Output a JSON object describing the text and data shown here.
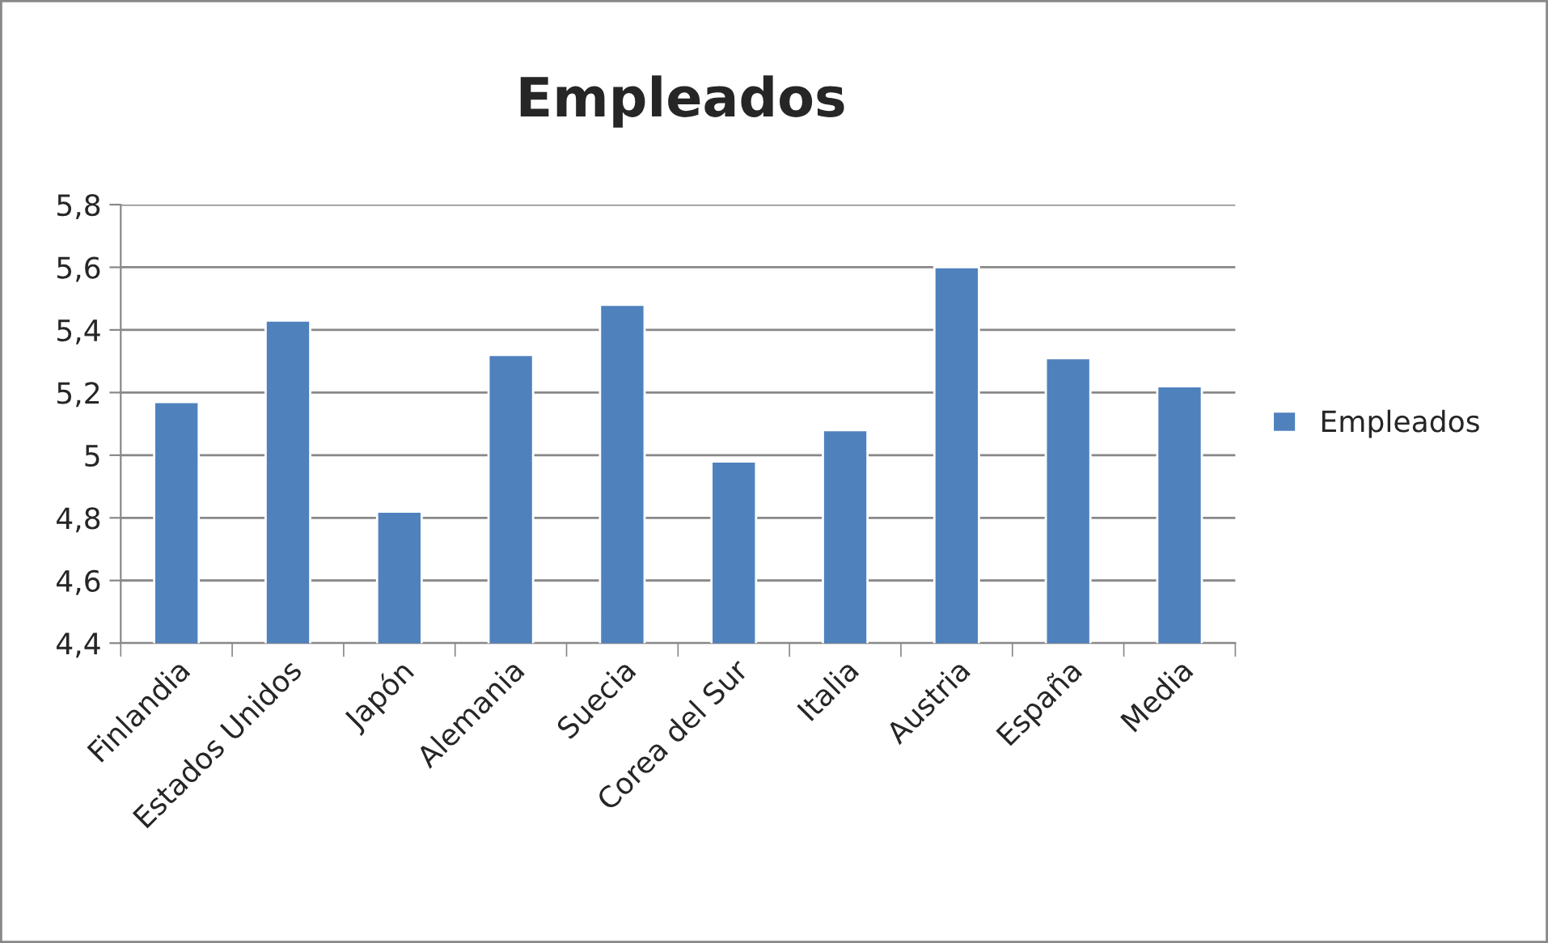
{
  "chart_data": {
    "type": "bar",
    "title": "Empleados",
    "categories": [
      "Finlandia",
      "Estados Unidos",
      "Japón",
      "Alemania",
      "Suecia",
      "Corea del Sur",
      "Italia",
      "Austria",
      "España",
      "Media"
    ],
    "series": [
      {
        "name": "Empleados",
        "color": "#4f81bd",
        "values": [
          5.17,
          5.43,
          4.82,
          5.32,
          5.48,
          4.98,
          5.08,
          5.6,
          5.31,
          5.22
        ]
      }
    ],
    "ylim": [
      4.4,
      5.8
    ],
    "yticks": [
      {
        "value": 4.4,
        "label": "4,4"
      },
      {
        "value": 4.6,
        "label": "4,6"
      },
      {
        "value": 4.8,
        "label": "4,8"
      },
      5,
      {
        "value": 5.2,
        "label": "5,2"
      },
      {
        "value": 5.4,
        "label": "5,4"
      },
      {
        "value": 5.6,
        "label": "5,6"
      },
      {
        "value": 5.8,
        "label": "5,8"
      }
    ],
    "grid": "y",
    "legend": "right"
  }
}
